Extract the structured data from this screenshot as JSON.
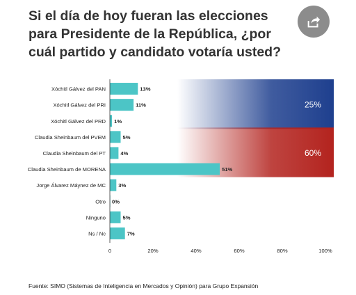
{
  "title": "Si el día de hoy fueran las elecciones para Presidente de la República, ¿por cuál partido y candidato votaría usted?",
  "share_icon": "share-icon",
  "source": "Fuente: SIMO (Sistemas de Inteligencia en Mercados y Opinión) para Grupo Expansión",
  "colors": {
    "bar": "#4cc5c6",
    "pan_block": "#1e3f8e",
    "morena_block": "#b3231e"
  },
  "chart_data": {
    "type": "bar",
    "orientation": "horizontal",
    "categories": [
      "Xóchitl Gálvez del PAN",
      "Xóchitl Gálvez del PRI",
      "Xóchitl Gálvez del PRD",
      "Claudia Sheinbaum del PVEM",
      "Claudia Sheinbaum del PT",
      "Claudia Sheinbaum de MORENA",
      "Jorge Álvarez Máynez de MC",
      "Otro",
      "Ninguno",
      "Ns / Nc"
    ],
    "values": [
      13,
      11,
      1,
      5,
      4,
      51,
      3,
      0,
      5,
      7
    ],
    "value_labels": [
      "13%",
      "11%",
      "1%",
      "5%",
      "4%",
      "51%",
      "3%",
      "0%",
      "5%",
      "7%"
    ],
    "xlim": [
      0,
      100
    ],
    "xticks": [
      "0",
      "20%",
      "40%",
      "60%",
      "80%",
      "100%"
    ],
    "groups": [
      {
        "label": "25%",
        "value": 25,
        "rows": [
          0,
          2
        ],
        "color": "#1e3f8e"
      },
      {
        "label": "60%",
        "value": 60,
        "rows": [
          3,
          5
        ],
        "color": "#b3231e"
      }
    ],
    "grid": false,
    "legend": "none"
  }
}
